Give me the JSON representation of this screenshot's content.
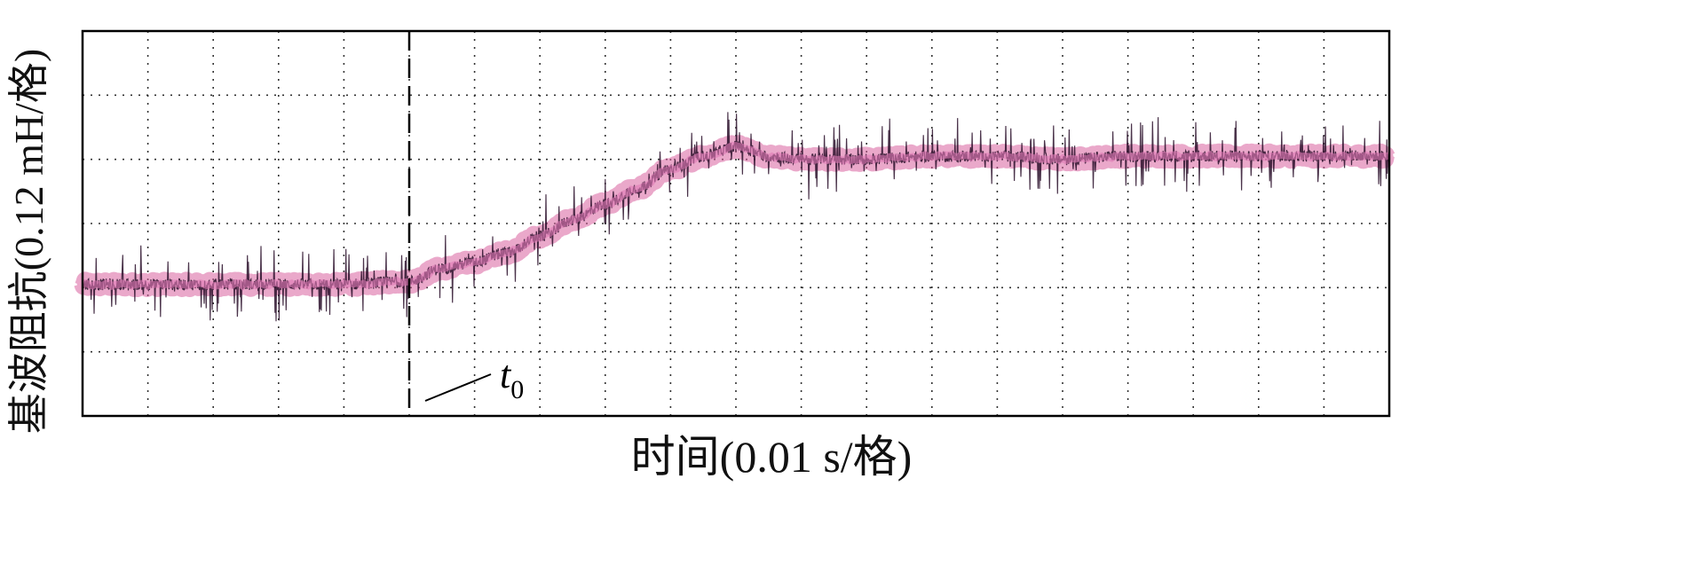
{
  "chart_data": {
    "type": "line",
    "xlabel": "时间(0.01 s/格)",
    "ylabel": "基波阻抗(0.12 mH/格)",
    "x_divisions": 20,
    "y_divisions": 6,
    "grid": true,
    "x_range": [
      0,
      20
    ],
    "y_range": [
      0,
      6
    ],
    "colors": {
      "trace": "#d9609e",
      "noise": "#2a0f2a",
      "frame": "#000000",
      "grid": "#333333",
      "marker": "#000000"
    },
    "marker": {
      "label": "t",
      "subscript": "0",
      "x": 5.0
    },
    "series": [
      {
        "x": [
          0,
          1,
          2,
          3,
          4,
          5,
          5.5,
          6,
          6.5,
          7,
          7.5,
          8,
          8.5,
          9,
          9.5,
          10,
          10.5,
          11,
          12,
          13,
          14,
          15,
          16,
          17,
          18,
          19,
          20
        ],
        "values": [
          2.05,
          2.05,
          2.05,
          2.05,
          2.05,
          2.1,
          2.3,
          2.4,
          2.55,
          2.8,
          3.05,
          3.3,
          3.55,
          3.85,
          4.05,
          4.2,
          4.05,
          4.0,
          4.0,
          4.05,
          4.05,
          4.0,
          4.05,
          4.05,
          4.05,
          4.05,
          4.05
        ]
      }
    ]
  }
}
